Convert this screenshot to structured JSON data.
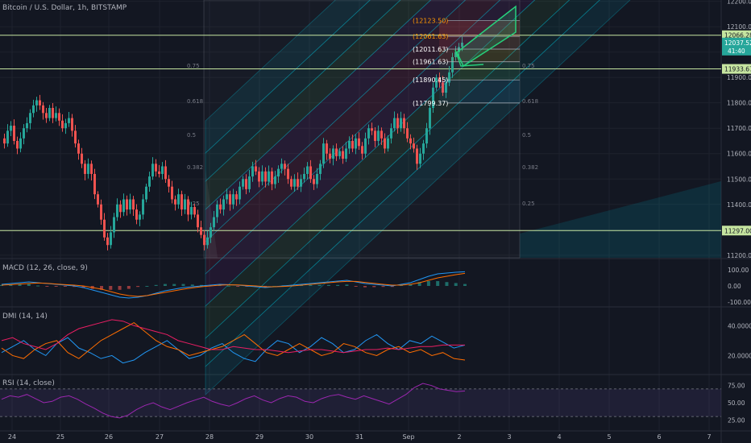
{
  "header": {
    "title": "Bitcoin / U.S. Dollar, 1h, BITSTAMP"
  },
  "panes": {
    "macd": {
      "title": "MACD (12, 26, close, 9)",
      "ticks": [
        "100.00",
        "0.00",
        "-100.00"
      ]
    },
    "dmi": {
      "title": "DMI (14, 14)",
      "ticks": [
        "40.0000",
        "20.0000"
      ]
    },
    "rsi": {
      "title": "RSI (14, close)",
      "ticks": [
        "75.00",
        "50.00",
        "25.00"
      ]
    }
  },
  "colors": {
    "background": "#131722",
    "up": "#26a69a",
    "down": "#ef5350",
    "grid": "#1e222d",
    "hline": "#c6e5a0",
    "macd": "#2196f3",
    "signal": "#ff6d00",
    "rsi": "#9c27b0",
    "plus_di": "#2196f3",
    "minus_di": "#ff6d00",
    "adx": "#e91e63",
    "fib_box": "#26d07c"
  },
  "chart_data": [
    {
      "type": "candlestick",
      "title": "Bitcoin / U.S. Dollar, 1h, BITSTAMP",
      "x_tick_labels": [
        "24",
        "25",
        "26",
        "27",
        "28",
        "29",
        "30",
        "31",
        "Sep",
        "2",
        "3",
        "4",
        "5",
        "6",
        "7"
      ],
      "y_tick_labels": [
        "12200.00",
        "12100.00",
        "12000.00",
        "11900.00",
        "11800.00",
        "11700.00",
        "11600.00",
        "11500.00",
        "11400.00",
        "11300.00",
        "11200.00"
      ],
      "ylim": [
        11190,
        12205
      ],
      "horizontal_lines": [
        {
          "value": 12066.28,
          "label": "12066.28"
        },
        {
          "value": 11933.67,
          "label": "11933.67"
        },
        {
          "value": 11297.0,
          "label": "11297.00"
        }
      ],
      "last_price": {
        "value": 12037.52,
        "label": "12037.52",
        "countdown": "41:40"
      },
      "fib_levels_left": [
        "0.75",
        "0.618",
        "0.5",
        "0.382",
        "0.25"
      ],
      "fib_levels_right": [
        "0.75",
        "0.618",
        "0.5",
        "0.382",
        "0.25"
      ],
      "fib_box_labels": [
        {
          "value": 12123.5,
          "label": "(12123.50)"
        },
        {
          "value": 12061.63,
          "label": "(12061.63)"
        },
        {
          "value": 12011.63,
          "label": "(12011.63)"
        },
        {
          "value": 11961.63,
          "label": "(11961.63)"
        },
        {
          "value": 11890.45,
          "label": "(11890.45)"
        },
        {
          "value": 11799.37,
          "label": "(11799.37)"
        }
      ],
      "price_path": [
        [
          0,
          11660
        ],
        [
          4,
          11640
        ],
        [
          8,
          11690
        ],
        [
          12,
          11710
        ],
        [
          16,
          11650
        ],
        [
          20,
          11620
        ],
        [
          24,
          11660
        ],
        [
          28,
          11700
        ],
        [
          32,
          11720
        ],
        [
          36,
          11760
        ],
        [
          40,
          11790
        ],
        [
          44,
          11810
        ],
        [
          48,
          11790
        ],
        [
          52,
          11760
        ],
        [
          56,
          11740
        ],
        [
          60,
          11780
        ],
        [
          64,
          11740
        ],
        [
          68,
          11760
        ],
        [
          72,
          11730
        ],
        [
          76,
          11700
        ],
        [
          80,
          11720
        ],
        [
          84,
          11740
        ],
        [
          88,
          11690
        ],
        [
          92,
          11640
        ],
        [
          96,
          11600
        ],
        [
          100,
          11560
        ],
        [
          104,
          11520
        ],
        [
          108,
          11560
        ],
        [
          112,
          11520
        ],
        [
          116,
          11440
        ],
        [
          120,
          11400
        ],
        [
          124,
          11340
        ],
        [
          128,
          11270
        ],
        [
          132,
          11240
        ],
        [
          136,
          11290
        ],
        [
          140,
          11350
        ],
        [
          144,
          11400
        ],
        [
          148,
          11370
        ],
        [
          152,
          11420
        ],
        [
          156,
          11380
        ],
        [
          160,
          11420
        ],
        [
          164,
          11380
        ],
        [
          168,
          11340
        ],
        [
          172,
          11360
        ],
        [
          176,
          11420
        ],
        [
          180,
          11470
        ],
        [
          184,
          11510
        ],
        [
          188,
          11560
        ],
        [
          192,
          11530
        ],
        [
          196,
          11520
        ],
        [
          200,
          11550
        ],
        [
          204,
          11500
        ],
        [
          208,
          11470
        ],
        [
          212,
          11420
        ],
        [
          216,
          11400
        ],
        [
          220,
          11440
        ],
        [
          224,
          11380
        ],
        [
          228,
          11420
        ],
        [
          232,
          11360
        ],
        [
          236,
          11390
        ],
        [
          240,
          11360
        ],
        [
          244,
          11310
        ],
        [
          248,
          11280
        ],
        [
          252,
          11240
        ],
        [
          256,
          11270
        ],
        [
          260,
          11310
        ],
        [
          264,
          11350
        ],
        [
          268,
          11400
        ],
        [
          272,
          11380
        ],
        [
          276,
          11420
        ],
        [
          280,
          11440
        ],
        [
          284,
          11400
        ],
        [
          288,
          11440
        ],
        [
          292,
          11420
        ],
        [
          296,
          11470
        ],
        [
          300,
          11500
        ],
        [
          304,
          11460
        ],
        [
          308,
          11510
        ],
        [
          312,
          11550
        ],
        [
          316,
          11530
        ],
        [
          320,
          11490
        ],
        [
          324,
          11530
        ],
        [
          328,
          11490
        ],
        [
          332,
          11530
        ],
        [
          336,
          11480
        ],
        [
          340,
          11510
        ],
        [
          344,
          11540
        ],
        [
          348,
          11560
        ],
        [
          352,
          11540
        ],
        [
          356,
          11500
        ],
        [
          360,
          11470
        ],
        [
          364,
          11500
        ],
        [
          368,
          11470
        ],
        [
          372,
          11500
        ],
        [
          376,
          11520
        ],
        [
          380,
          11550
        ],
        [
          384,
          11500
        ],
        [
          388,
          11480
        ],
        [
          392,
          11520
        ],
        [
          396,
          11560
        ],
        [
          400,
          11640
        ],
        [
          404,
          11600
        ],
        [
          408,
          11580
        ],
        [
          412,
          11620
        ],
        [
          416,
          11590
        ],
        [
          420,
          11610
        ],
        [
          424,
          11580
        ],
        [
          428,
          11620
        ],
        [
          432,
          11650
        ],
        [
          436,
          11620
        ],
        [
          440,
          11660
        ],
        [
          444,
          11630
        ],
        [
          448,
          11600
        ],
        [
          452,
          11660
        ],
        [
          456,
          11700
        ],
        [
          460,
          11690
        ],
        [
          464,
          11650
        ],
        [
          468,
          11690
        ],
        [
          472,
          11660
        ],
        [
          476,
          11620
        ],
        [
          480,
          11660
        ],
        [
          484,
          11700
        ],
        [
          488,
          11740
        ],
        [
          492,
          11700
        ],
        [
          496,
          11740
        ],
        [
          500,
          11700
        ],
        [
          504,
          11660
        ],
        [
          508,
          11640
        ],
        [
          512,
          11620
        ],
        [
          516,
          11560
        ],
        [
          520,
          11600
        ],
        [
          524,
          11640
        ],
        [
          528,
          11700
        ],
        [
          532,
          11780
        ],
        [
          536,
          11860
        ],
        [
          540,
          11900
        ],
        [
          544,
          11880
        ],
        [
          548,
          11840
        ],
        [
          552,
          11880
        ],
        [
          556,
          11920
        ],
        [
          560,
          11980
        ],
        [
          564,
          12000
        ],
        [
          568,
          12020
        ],
        [
          572,
          12037
        ]
      ]
    },
    {
      "type": "line",
      "title": "MACD (12, 26, close, 9)",
      "ylim": [
        -100,
        100
      ],
      "series": [
        {
          "values": [
            10,
            15,
            20,
            25,
            20,
            15,
            10,
            5,
            0,
            -10,
            -25,
            -40,
            -55,
            -70,
            -75,
            -70,
            -60,
            -45,
            -30,
            -20,
            -10,
            -5,
            0,
            5,
            10,
            8,
            5,
            0,
            -5,
            -10,
            -5,
            0,
            5,
            10,
            15,
            20,
            25,
            30,
            35,
            25,
            15,
            10,
            5,
            0,
            10,
            20,
            40,
            60,
            75,
            80,
            85,
            88
          ]
        },
        {
          "values": [
            5,
            8,
            12,
            15,
            18,
            16,
            12,
            8,
            5,
            0,
            -10,
            -20,
            -35,
            -50,
            -60,
            -65,
            -60,
            -50,
            -40,
            -30,
            -20,
            -12,
            -5,
            0,
            5,
            7,
            6,
            3,
            0,
            -5,
            -5,
            -3,
            0,
            5,
            10,
            15,
            20,
            25,
            28,
            28,
            22,
            16,
            10,
            5,
            5,
            10,
            20,
            35,
            50,
            60,
            70,
            78
          ]
        }
      ]
    },
    {
      "type": "line",
      "title": "DMI (14, 14)",
      "ylim": [
        10,
        45
      ],
      "series": [
        {
          "values": [
            22,
            26,
            30,
            24,
            20,
            28,
            32,
            25,
            22,
            18,
            20,
            15,
            17,
            22,
            26,
            30,
            24,
            18,
            20,
            25,
            28,
            22,
            18,
            16,
            24,
            30,
            28,
            22,
            26,
            32,
            28,
            22,
            24,
            30,
            34,
            28,
            24,
            30,
            28,
            33,
            29,
            25,
            27
          ]
        },
        {
          "values": [
            25,
            20,
            18,
            24,
            28,
            30,
            22,
            18,
            24,
            30,
            34,
            38,
            42,
            36,
            30,
            26,
            24,
            20,
            22,
            24,
            26,
            30,
            34,
            28,
            22,
            20,
            24,
            28,
            24,
            20,
            22,
            28,
            26,
            22,
            20,
            24,
            26,
            22,
            24,
            20,
            22,
            18,
            17
          ]
        },
        {
          "values": [
            30,
            32,
            28,
            26,
            24,
            28,
            34,
            38,
            40,
            42,
            44,
            43,
            40,
            38,
            36,
            34,
            30,
            28,
            26,
            24,
            24,
            26,
            25,
            24,
            24,
            23,
            22,
            23,
            24,
            24,
            23,
            22,
            23,
            24,
            24,
            25,
            24,
            25,
            26,
            26,
            27,
            27,
            27
          ]
        }
      ]
    },
    {
      "type": "line",
      "title": "RSI (14, close)",
      "ylim": [
        15,
        85
      ],
      "reference_lines": [
        70,
        30
      ],
      "series": [
        {
          "values": [
            55,
            60,
            58,
            62,
            56,
            50,
            52,
            58,
            60,
            55,
            48,
            42,
            35,
            30,
            28,
            32,
            40,
            46,
            50,
            44,
            40,
            45,
            50,
            54,
            58,
            52,
            48,
            45,
            50,
            56,
            60,
            54,
            50,
            56,
            60,
            58,
            52,
            50,
            56,
            60,
            62,
            58,
            55,
            60,
            56,
            52,
            48,
            55,
            62,
            72,
            78,
            75,
            70,
            68,
            66,
            67
          ]
        }
      ]
    }
  ]
}
